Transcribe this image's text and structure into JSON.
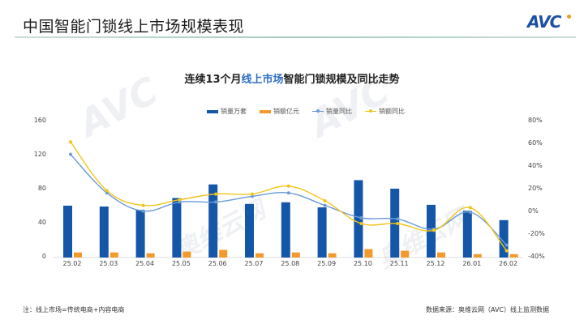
{
  "header": {
    "title": "中国智能门锁线上市场规模表现",
    "logo": "AVC"
  },
  "chart_title": {
    "prefix": "连续13个月",
    "highlight": "线上市场",
    "suffix": "智能门锁规模及同比走势"
  },
  "legend": [
    {
      "label": "销量万套",
      "type": "bar",
      "color": "#1456a8"
    },
    {
      "label": "销额亿元",
      "type": "bar",
      "color": "#f39a2c"
    },
    {
      "label": "销量同比",
      "type": "line",
      "color": "#6a9bd6"
    },
    {
      "label": "销额同比",
      "type": "line",
      "color": "#f2c418"
    }
  ],
  "footer": {
    "note": "注：线上市场=传统电商+内容电商",
    "source": "数据来源：奥维云网（AVC）线上监测数据"
  },
  "watermark": "AVC 奥维云网",
  "chart_data": {
    "type": "bar",
    "title": "连续13个月线上市场智能门锁规模及同比走势",
    "categories": [
      "25.02",
      "25.03",
      "25.04",
      "25.05",
      "25.06",
      "25.07",
      "25.08",
      "25.09",
      "25.10",
      "25.11",
      "25.12",
      "26.01",
      "26.02"
    ],
    "series": [
      {
        "name": "销量万套",
        "type": "bar",
        "axis": "left",
        "color": "#1456a8",
        "values": [
          61,
          60,
          56,
          70,
          86,
          63,
          65,
          59,
          91,
          81,
          62,
          55,
          44
        ]
      },
      {
        "name": "销额亿元",
        "type": "bar",
        "axis": "left",
        "color": "#f39a2c",
        "values": [
          6,
          6,
          5,
          7,
          9,
          5,
          6,
          5,
          10,
          8,
          6,
          4,
          4
        ]
      },
      {
        "name": "销量同比",
        "type": "line",
        "axis": "right",
        "unit": "%",
        "color": "#6a9bd6",
        "values": [
          51,
          17,
          1,
          9,
          9,
          14,
          17,
          6,
          -5,
          -6,
          -15,
          0,
          -29
        ]
      },
      {
        "name": "销额同比",
        "type": "line",
        "axis": "right",
        "unit": "%",
        "color": "#f2c418",
        "values": [
          62,
          19,
          6,
          11,
          16,
          16,
          23,
          10,
          -10,
          -10,
          -16,
          4,
          -34
        ]
      }
    ],
    "left_axis": {
      "ticks": [
        "0",
        "40",
        "80",
        "120",
        "160"
      ],
      "ylim": [
        0,
        160
      ]
    },
    "right_axis": {
      "ticks": [
        "-40%",
        "-20%",
        "0%",
        "20%",
        "40%",
        "60%",
        "80%"
      ],
      "ylim": [
        -40,
        80
      ]
    },
    "xlabel": "",
    "ylabel": "",
    "grid": false,
    "legend_position": "top"
  }
}
